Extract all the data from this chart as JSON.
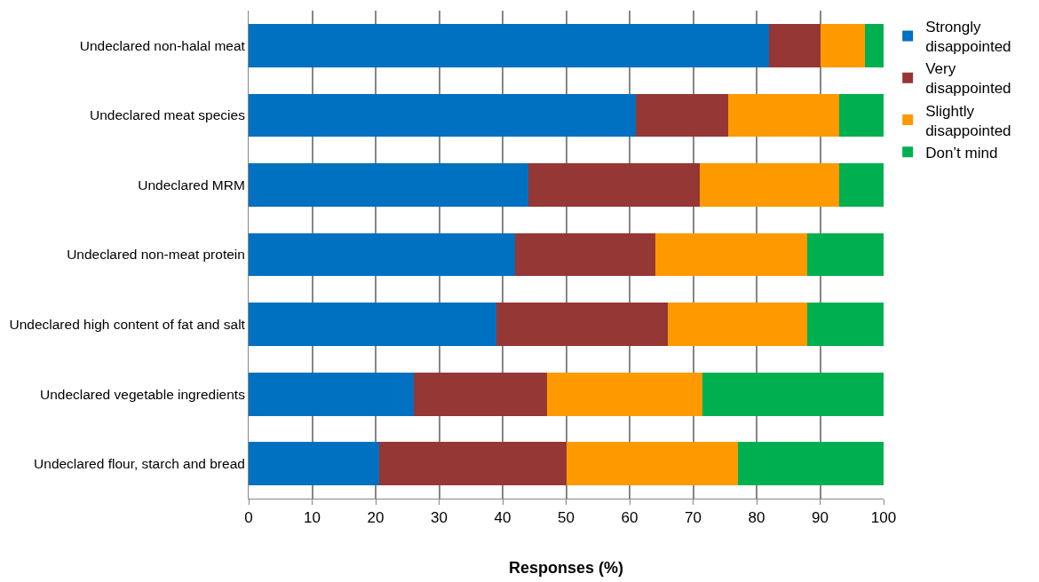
{
  "chart_data": {
    "type": "bar",
    "orientation": "horizontal",
    "stacked": true,
    "xlabel": "Responses (%)",
    "categories": [
      "Undeclared non-halal meat",
      "Undeclared meat species",
      "Undeclared MRM",
      "Undeclared non-meat protein",
      "Undeclared high content of fat and salt",
      "Undeclared vegetable ingredients",
      "Undeclared flour, starch and bread"
    ],
    "series": [
      {
        "name": "Strongly disappointed",
        "color": "#0070c0",
        "values": [
          82,
          61,
          44,
          42,
          39,
          26,
          20.5
        ]
      },
      {
        "name": "Very disappointed",
        "color": "#953735",
        "values": [
          8,
          14.5,
          27,
          22,
          27,
          21,
          29.5
        ]
      },
      {
        "name": "Slightly disappointed",
        "color": "#ff9900",
        "values": [
          7,
          17.5,
          22,
          24,
          22,
          24.5,
          27
        ]
      },
      {
        "name": "Don’t mind",
        "color": "#00b050",
        "values": [
          3,
          7,
          7,
          12,
          12,
          28.5,
          23
        ]
      }
    ],
    "xlim": [
      0,
      100
    ],
    "xticks": [
      0,
      10,
      20,
      30,
      40,
      50,
      60,
      70,
      80,
      90,
      100
    ],
    "grid": "x",
    "legend": "right"
  }
}
